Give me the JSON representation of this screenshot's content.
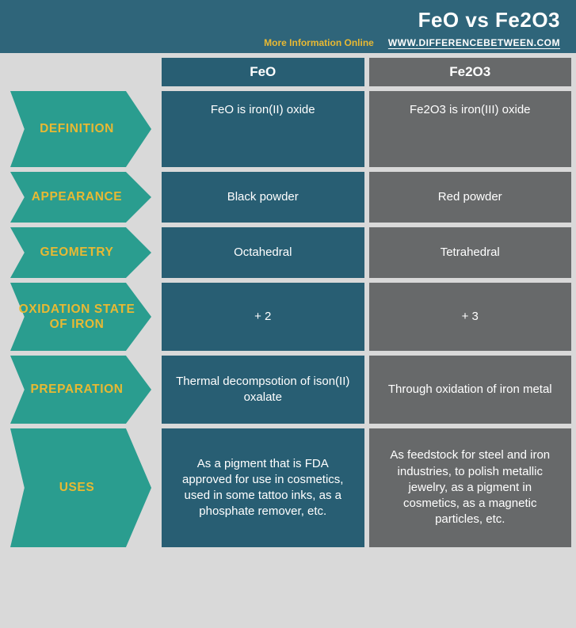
{
  "header": {
    "title": "FeO vs Fe2O3",
    "more_info": "More Information Online",
    "site_url": "WWW.DIFFERENCEBETWEEN.COM"
  },
  "columns": {
    "a_label": "FeO",
    "b_label": "Fe2O3"
  },
  "rows": [
    {
      "id": "definition",
      "label": "DEFINITION",
      "a": "FeO is iron(II) oxide",
      "b": "Fe2O3 is iron(III) oxide",
      "size": "def"
    },
    {
      "id": "appearance",
      "label": "APPEARANCE",
      "a": "Black powder",
      "b": "Red powder",
      "size": "sm"
    },
    {
      "id": "geometry",
      "label": "GEOMETRY",
      "a": "Octahedral",
      "b": "Tetrahedral",
      "size": "sm"
    },
    {
      "id": "oxidation",
      "label": "OXIDATION STATE OF IRON",
      "a": "+ 2",
      "b": "+ 3",
      "size": "md"
    },
    {
      "id": "preparation",
      "label": "PREPARATION",
      "a": "Thermal decompsotion of ison(II) oxalate",
      "b": "Through oxidation of iron metal",
      "size": "md"
    },
    {
      "id": "uses",
      "label": "USES",
      "a": "As a pigment that is FDA approved for use in cosmetics, used in some tattoo inks, as a phosphate remover, etc.",
      "b": "As feedstock for steel and iron industries, to polish metallic jewelry, as a pigment in cosmetics, as a magnetic particles, etc.",
      "size": "lg"
    }
  ],
  "style": {
    "bg": "#d9d9d9",
    "header_bg": "#2f657a",
    "accent_text": "#e8b933",
    "arrow_bg": "#2a9d8f",
    "col_a_bg": "#285e73",
    "col_b_bg": "#67696a",
    "text_color": "#ffffff",
    "title_fontsize": 26,
    "label_fontsize": 15.5,
    "cell_fontsize": 15,
    "arrow_width": 178,
    "label_col_width": 204
  }
}
